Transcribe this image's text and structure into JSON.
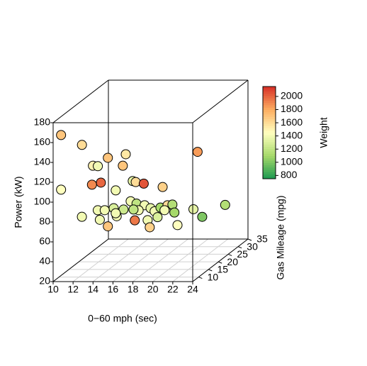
{
  "chart_data": {
    "type": "scatter3d",
    "xlabel": "0−60 mph (sec)",
    "ylabel": "Gas Mileage (mpg)",
    "zlabel": "Power (kW)",
    "colorbar_label": "Weight",
    "xlim": [
      10,
      24
    ],
    "xticks": [
      10,
      12,
      14,
      16,
      18,
      20,
      22,
      24
    ],
    "ylim": [
      7,
      35
    ],
    "yticks": [
      10,
      15,
      20,
      25,
      30,
      35
    ],
    "zlim": [
      20,
      180
    ],
    "zticks": [
      20,
      40,
      60,
      80,
      100,
      120,
      140,
      160,
      180
    ],
    "clim": [
      750,
      2150
    ],
    "cticks": [
      800,
      1000,
      1200,
      1400,
      1600,
      1800,
      2000
    ],
    "colormap": [
      "#1a9850",
      "#a6d96a",
      "#ffffbf",
      "#fdae61",
      "#d73027"
    ],
    "grid": true,
    "x": [
      10.2,
      11.9,
      10.2,
      13.0,
      12.9,
      14.5,
      15.7,
      16.0,
      13.8,
      13.3,
      14.1,
      16.4,
      16.7,
      18.1,
      19.4,
      23.5,
      11.3,
      12.3,
      12.6,
      13.5,
      13.5,
      15.2,
      14.8,
      16.6,
      17.2,
      18.0,
      17.2,
      18.9,
      18.4,
      18.6,
      18.6,
      21.5,
      20.4,
      22.7,
      13.1,
      14.2,
      14.5,
      17.2,
      17.3,
      17.9,
      19.9,
      18.7,
      14.1,
      16.0,
      14.5
    ],
    "y": [
      10,
      12,
      10,
      12,
      15,
      12,
      15,
      12,
      12,
      10,
      18,
      15,
      15,
      12,
      15,
      12,
      15,
      18,
      20,
      20,
      25,
      20,
      25,
      20,
      20,
      18,
      25,
      20,
      25,
      20,
      25,
      20,
      30,
      30,
      15,
      18,
      12,
      12,
      18,
      20,
      20,
      12,
      18,
      20,
      25
    ],
    "z": [
      163,
      150,
      108,
      129,
      124,
      137,
      136,
      129,
      112,
      113,
      95,
      109,
      108,
      111,
      103,
      143,
      73,
      75,
      72,
      74,
      65,
      81,
      71,
      77,
      74,
      74,
      67,
      77,
      70,
      72,
      62,
      73,
      50,
      62,
      70,
      69,
      68,
      74,
      65,
      65,
      57,
      67,
      72,
      72,
      65
    ],
    "color_values": [
      1700,
      1600,
      1450,
      1500,
      1400,
      1700,
      1550,
      1700,
      2000,
      1900,
      1400,
      1350,
      1600,
      2050,
      1650,
      1850,
      1400,
      1400,
      1400,
      1300,
      1250,
      1400,
      1200,
      1400,
      1350,
      1400,
      1100,
      1600,
      1150,
      1400,
      1100,
      1350,
      1000,
      1150,
      1400,
      1400,
      1700,
      1950,
      1400,
      1300,
      1450,
      1650,
      1400,
      1400,
      1200
    ]
  }
}
